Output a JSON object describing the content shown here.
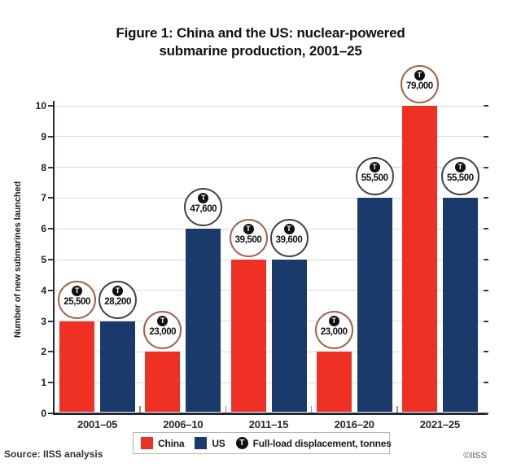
{
  "title_line1": "Figure 1: China and the US: nuclear-powered",
  "title_line2": "submarine production, 2001–25",
  "source": "Source: IISS analysis",
  "copyright": "©IISS",
  "colors": {
    "china": "#ee3124",
    "us": "#1a3a6b",
    "china_badge_border": "#a5604a",
    "us_badge_border": "#444444",
    "grid": "#d9d9d9",
    "axis": "#20283a",
    "badge_fill": "#111111"
  },
  "legend": [
    {
      "label": "China",
      "type": "swatch",
      "color": "#ee3124"
    },
    {
      "label": "US",
      "type": "swatch",
      "color": "#1a3a6b"
    },
    {
      "label": "Full-load displacement, tonnes",
      "type": "t-badge"
    }
  ],
  "chart_data": {
    "type": "bar",
    "title": "Figure 1: China and the US: nuclear-powered submarine production, 2001–25",
    "categories": [
      "2001–05",
      "2006–10",
      "2011–15",
      "2016–20",
      "2021–25"
    ],
    "series": [
      {
        "name": "China",
        "values": [
          3,
          2,
          5,
          2,
          10
        ],
        "displacement_tonnes": [
          "25,500",
          "23,000",
          "39,500",
          "23,000",
          "79,000"
        ],
        "color": "#ee3124",
        "badge_border": "#a5604a"
      },
      {
        "name": "US",
        "values": [
          3,
          6,
          5,
          7,
          7
        ],
        "displacement_tonnes": [
          "28,200",
          "47,600",
          "39,600",
          "55,500",
          "55,500"
        ],
        "color": "#1a3a6b",
        "badge_border": "#444444"
      }
    ],
    "xlabel": "",
    "ylabel": "Number of new submarines launched",
    "ylim": [
      0,
      10
    ],
    "yticks": [
      0,
      1,
      2,
      3,
      4,
      5,
      6,
      7,
      8,
      9,
      10
    ],
    "grid": true,
    "legend_position": "bottom",
    "badge_symbol": "T",
    "badge_meaning": "Full-load displacement, tonnes"
  }
}
